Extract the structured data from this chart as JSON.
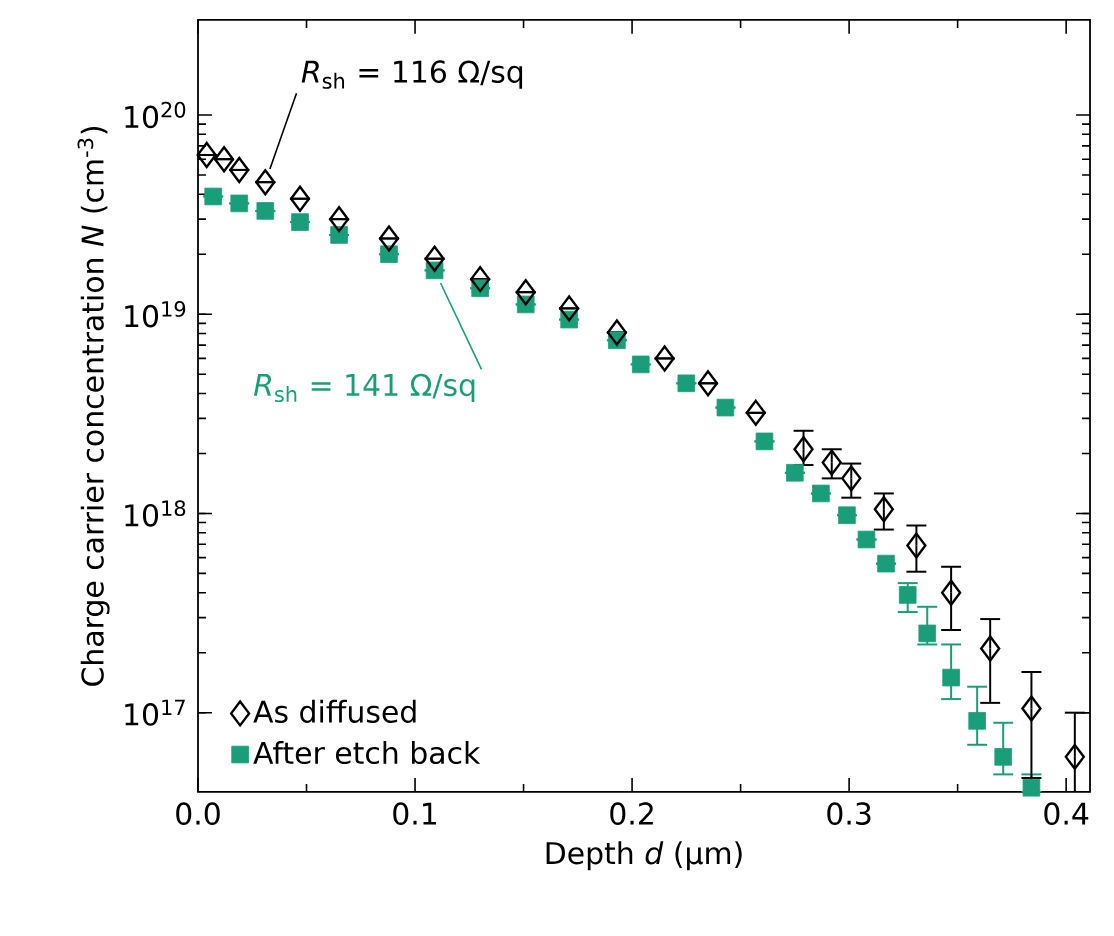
{
  "chart_data": {
    "type": "scatter",
    "xlabel": "Depth *d* (µm)",
    "ylabel": "Charge carrier concentration *N* (cm$^{-3}$)",
    "log": "y",
    "xlim": [
      0,
      0.411
    ],
    "ylim": [
      4e+16,
      3e+20
    ],
    "xticks": [
      {
        "value": 0,
        "label": "0.0"
      },
      0.1,
      0.2,
      0.3,
      0.4
    ],
    "yticks": [
      {
        "value": 1e+17,
        "label": "10$^{17}$"
      },
      {
        "value": 1e+18,
        "label": "10$^{18}$"
      },
      {
        "value": 1e+19,
        "label": "10$^{19}$"
      },
      {
        "value": 1e+20,
        "label": "10$^{20}$"
      }
    ],
    "grid": false,
    "legend": "bottom left",
    "series": [
      {
        "name": "As diffused",
        "color": "#000000",
        "marker": "diamond",
        "x": [
          0.004,
          0.012,
          0.019,
          0.031,
          0.047,
          0.065,
          0.088,
          0.109,
          0.13,
          0.151,
          0.171,
          0.193,
          0.215,
          0.235,
          0.257,
          0.279,
          0.292,
          0.301,
          0.316,
          0.331,
          0.347,
          0.365,
          0.384,
          0.404
        ],
        "values": [
          6.3e+19,
          6e+19,
          5.3e+19,
          4.6e+19,
          3.8e+19,
          3e+19,
          2.4e+19,
          1.9e+19,
          1.5e+19,
          1.29e+19,
          1.07e+19,
          8.1e+18,
          6e+18,
          4.5e+18,
          3.2e+18,
          2.1e+18,
          1.8e+18,
          1.5e+18,
          1.05e+18,
          6.9e+17,
          4e+17,
          2.1e+17,
          1.05e+17,
          6e+16
        ],
        "errors": [
          null,
          null,
          null,
          null,
          null,
          null,
          null,
          null,
          null,
          null,
          null,
          null,
          null,
          null,
          null,
          [
            1.75e+18,
            2.6e+18
          ],
          [
            1.5e+18,
            2.1e+18
          ],
          [
            1.2e+18,
            1.78e+18
          ],
          [
            8.3e+17,
            1.26e+18
          ],
          [
            5.1e+17,
            8.7e+17
          ],
          [
            2.6e+17,
            5.4e+17
          ],
          [
            1.12e+17,
            2.95e+17
          ],
          [
            4.7e+16,
            1.6e+17
          ],
          [
            4e+16,
            1e+17
          ]
        ]
      },
      {
        "name": "After etch back",
        "color": "#1a9e7a",
        "marker": "square",
        "x": [
          0.007,
          0.019,
          0.031,
          0.047,
          0.065,
          0.088,
          0.109,
          0.13,
          0.151,
          0.171,
          0.193,
          0.204,
          0.225,
          0.243,
          0.261,
          0.275,
          0.287,
          0.299,
          0.308,
          0.317,
          0.327,
          0.336,
          0.347,
          0.359,
          0.371,
          0.384
        ],
        "values": [
          3.9e+19,
          3.6e+19,
          3.3e+19,
          2.9e+19,
          2.5e+19,
          2e+19,
          1.66e+19,
          1.35e+19,
          1.12e+19,
          9.4e+18,
          7.4e+18,
          5.6e+18,
          4.5e+18,
          3.4e+18,
          2.3e+18,
          1.6e+18,
          1.26e+18,
          9.8e+17,
          7.4e+17,
          5.6e+17,
          3.9e+17,
          2.5e+17,
          1.5e+17,
          9.1e+16,
          6e+16,
          4.2e+16
        ],
        "errors": [
          null,
          null,
          null,
          null,
          null,
          null,
          null,
          null,
          null,
          null,
          null,
          null,
          null,
          null,
          null,
          null,
          null,
          null,
          null,
          null,
          [
            3.2e+17,
            4.47e+17
          ],
          [
            2.2e+17,
            3.4e+17
          ],
          [
            1.17e+17,
            2.2e+17
          ],
          [
            6.9e+16,
            1.35e+17
          ],
          [
            4.9e+16,
            8.9e+16
          ],
          [
            4e+16,
            4.9e+16
          ]
        ]
      }
    ],
    "annotations": [
      {
        "text": "*R*$_{sh}$ = 116 Ω/sq",
        "x": 0.031,
        "y": 4.6e+19
      },
      {
        "text": "*R*$_{sh}$ = 141 Ω/sq",
        "x": 0.109,
        "y": 1.66e+19
      }
    ]
  }
}
